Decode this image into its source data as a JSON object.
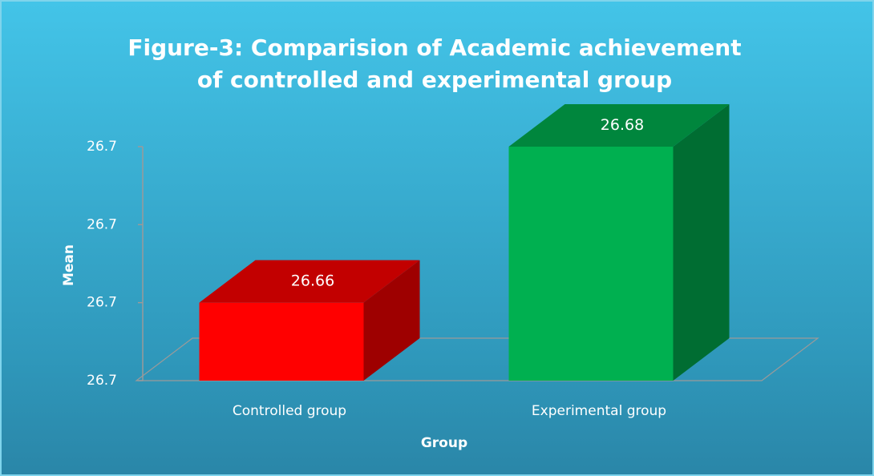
{
  "chart_data": {
    "type": "bar3d",
    "title": "Figure-3: Comparision of Academic achievement of controlled and experimental group",
    "x_label": "Group",
    "y_label": "Mean",
    "categories": [
      "Controlled group",
      "Experimental group"
    ],
    "values": [
      26.66,
      26.68
    ],
    "colors": [
      "#ff0000",
      "#00b050"
    ],
    "ylim": [
      26.65,
      26.68
    ],
    "yticks": [
      {
        "value": 26.65,
        "label": "26.7"
      },
      {
        "value": 26.66,
        "label": "26.7"
      },
      {
        "value": 26.67,
        "label": "26.7"
      },
      {
        "value": 26.68,
        "label": "26.7"
      }
    ]
  }
}
